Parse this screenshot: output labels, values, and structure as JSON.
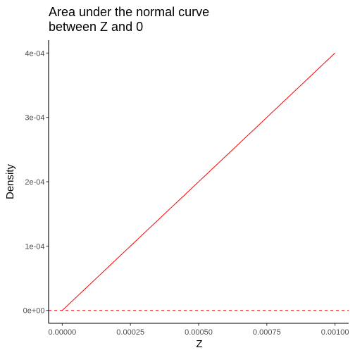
{
  "chart_data": {
    "type": "line",
    "title_lines": [
      "Area under the normal curve",
      "between Z and 0"
    ],
    "xlabel": "Z",
    "ylabel": "Density",
    "xlim": [
      -5e-05,
      0.00105
    ],
    "ylim": [
      -2e-05,
      0.00042
    ],
    "x_ticks": [
      0,
      0.00025,
      0.0005,
      0.00075,
      0.001
    ],
    "x_tick_labels": [
      "0.00000",
      "0.00025",
      "0.00050",
      "0.00075",
      "0.00100"
    ],
    "y_ticks": [
      0,
      0.0001,
      0.0002,
      0.0003,
      0.0004
    ],
    "y_tick_labels": [
      "0e+00",
      "1e-04",
      "2e-04",
      "3e-04",
      "4e-04"
    ],
    "grid": false,
    "series": [
      {
        "style": "solid",
        "color": "#ff0000",
        "x": [
          0,
          0.001
        ],
        "y": [
          0,
          0.0004
        ]
      }
    ],
    "reference_lines": [
      {
        "orientation": "horizontal",
        "y": 0,
        "style": "dashed",
        "color": "#ff0000"
      }
    ]
  }
}
